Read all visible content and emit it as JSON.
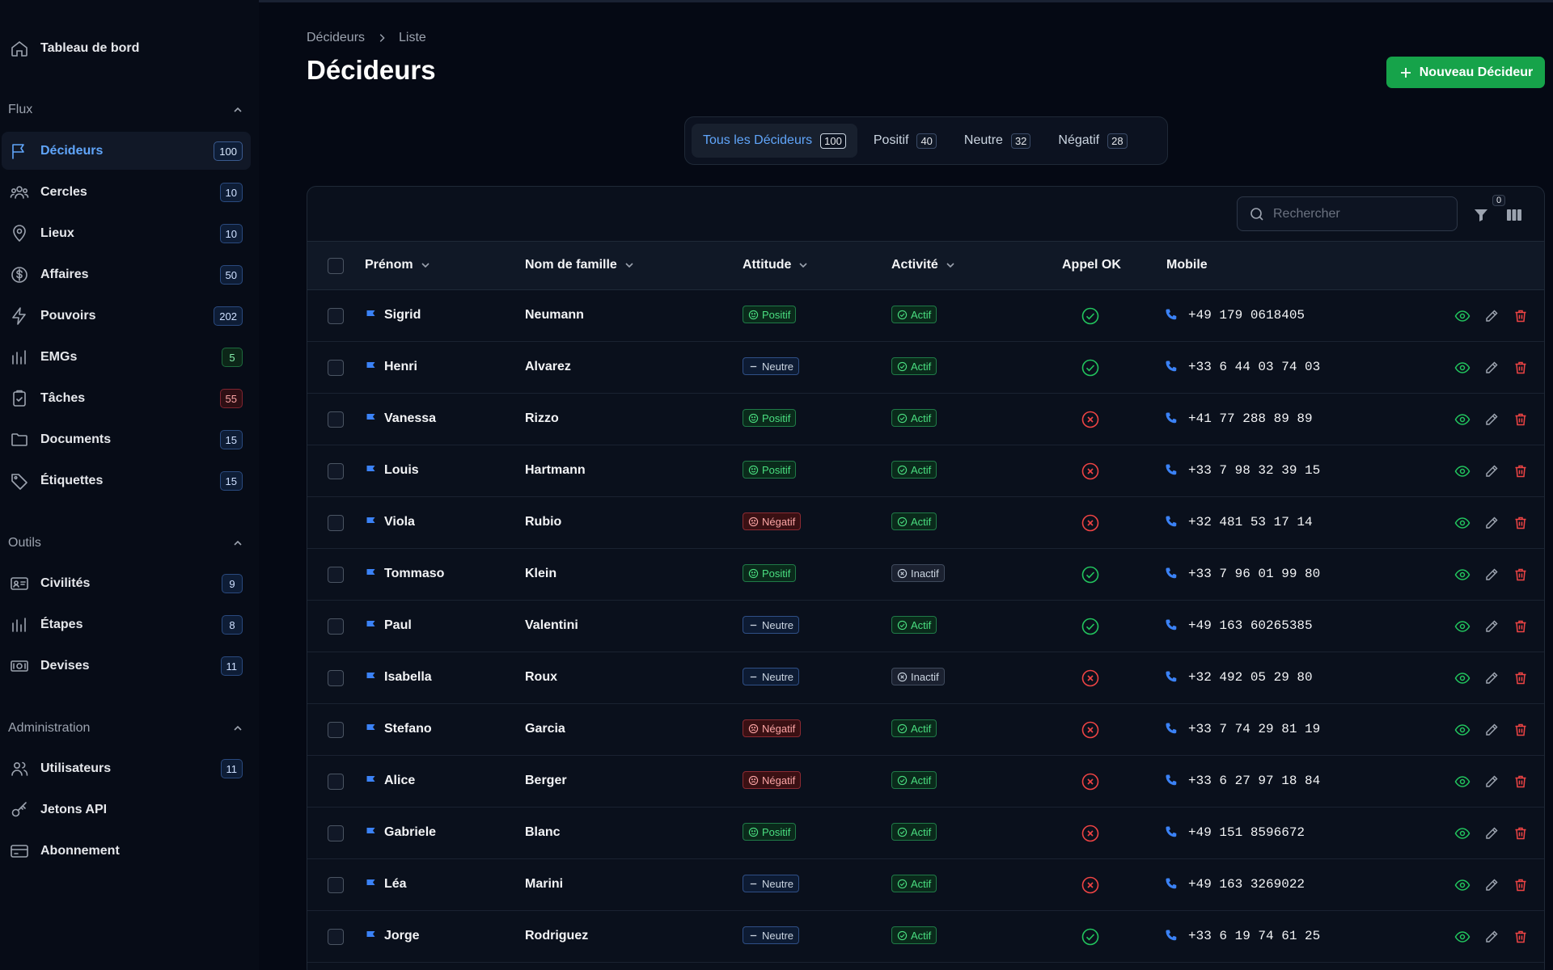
{
  "sidebar": {
    "dashboard": "Tableau de bord",
    "sections": {
      "flux": "Flux",
      "outils": "Outils",
      "admin": "Administration"
    },
    "flux_items": [
      {
        "label": "Décideurs",
        "count": "100",
        "icon": "flag-icon",
        "active": true
      },
      {
        "label": "Cercles",
        "count": "10",
        "icon": "users-group-icon"
      },
      {
        "label": "Lieux",
        "count": "10",
        "icon": "map-pin-icon"
      },
      {
        "label": "Affaires",
        "count": "50",
        "icon": "dollar-icon"
      },
      {
        "label": "Pouvoirs",
        "count": "202",
        "icon": "bolt-icon"
      },
      {
        "label": "EMGs",
        "count": "5",
        "icon": "bar-chart-icon",
        "badge": "green"
      },
      {
        "label": "Tâches",
        "count": "55",
        "icon": "clipboard-check-icon",
        "badge": "red"
      },
      {
        "label": "Documents",
        "count": "15",
        "icon": "folder-icon"
      },
      {
        "label": "Étiquettes",
        "count": "15",
        "icon": "tag-icon"
      }
    ],
    "outils_items": [
      {
        "label": "Civilités",
        "count": "9",
        "icon": "id-card-icon"
      },
      {
        "label": "Étapes",
        "count": "8",
        "icon": "bar-chart-icon"
      },
      {
        "label": "Devises",
        "count": "11",
        "icon": "banknote-icon"
      }
    ],
    "admin_items": [
      {
        "label": "Utilisateurs",
        "count": "11",
        "icon": "users-icon"
      },
      {
        "label": "Jetons API",
        "icon": "key-icon"
      },
      {
        "label": "Abonnement",
        "icon": "credit-card-icon"
      }
    ]
  },
  "breadcrumb": {
    "root": "Décideurs",
    "current": "Liste"
  },
  "page_title": "Décideurs",
  "new_button": "Nouveau Décideur",
  "tabs": [
    {
      "label": "Tous les Décideurs",
      "count": "100",
      "active": true
    },
    {
      "label": "Positif",
      "count": "40"
    },
    {
      "label": "Neutre",
      "count": "32"
    },
    {
      "label": "Négatif",
      "count": "28"
    }
  ],
  "search": {
    "placeholder": "Rechercher"
  },
  "filter_count": "0",
  "columns": {
    "first": "Prénom",
    "last": "Nom de famille",
    "attitude": "Attitude",
    "activity": "Activité",
    "call": "Appel OK",
    "mobile": "Mobile"
  },
  "rows": [
    {
      "first": "Sigrid",
      "last": "Neumann",
      "attitude": "Positif",
      "activity": "Actif",
      "call": true,
      "mobile": "+49 179 0618405"
    },
    {
      "first": "Henri",
      "last": "Alvarez",
      "attitude": "Neutre",
      "activity": "Actif",
      "call": true,
      "mobile": "+33 6 44 03 74 03"
    },
    {
      "first": "Vanessa",
      "last": "Rizzo",
      "attitude": "Positif",
      "activity": "Actif",
      "call": false,
      "mobile": "+41 77 288 89 89"
    },
    {
      "first": "Louis",
      "last": "Hartmann",
      "attitude": "Positif",
      "activity": "Actif",
      "call": false,
      "mobile": "+33 7 98 32 39 15"
    },
    {
      "first": "Viola",
      "last": "Rubio",
      "attitude": "Négatif",
      "activity": "Actif",
      "call": false,
      "mobile": "+32 481 53 17 14"
    },
    {
      "first": "Tommaso",
      "last": "Klein",
      "attitude": "Positif",
      "activity": "Inactif",
      "call": true,
      "mobile": "+33 7 96 01 99 80"
    },
    {
      "first": "Paul",
      "last": "Valentini",
      "attitude": "Neutre",
      "activity": "Actif",
      "call": true,
      "mobile": "+49 163 60265385"
    },
    {
      "first": "Isabella",
      "last": "Roux",
      "attitude": "Neutre",
      "activity": "Inactif",
      "call": false,
      "mobile": "+32 492 05 29 80"
    },
    {
      "first": "Stefano",
      "last": "Garcia",
      "attitude": "Négatif",
      "activity": "Actif",
      "call": false,
      "mobile": "+33 7 74 29 81 19"
    },
    {
      "first": "Alice",
      "last": "Berger",
      "attitude": "Négatif",
      "activity": "Actif",
      "call": false,
      "mobile": "+33 6 27 97 18 84"
    },
    {
      "first": "Gabriele",
      "last": "Blanc",
      "attitude": "Positif",
      "activity": "Actif",
      "call": false,
      "mobile": "+49 151 8596672"
    },
    {
      "first": "Léa",
      "last": "Marini",
      "attitude": "Neutre",
      "activity": "Actif",
      "call": false,
      "mobile": "+49 163 3269022"
    },
    {
      "first": "Jorge",
      "last": "Rodriguez",
      "attitude": "Neutre",
      "activity": "Actif",
      "call": true,
      "mobile": "+33 6 19 74 61 25"
    }
  ],
  "colors": {
    "accent": "#3b82f6",
    "green": "#22c55e",
    "red": "#ef4444",
    "button": "#16a34a"
  }
}
